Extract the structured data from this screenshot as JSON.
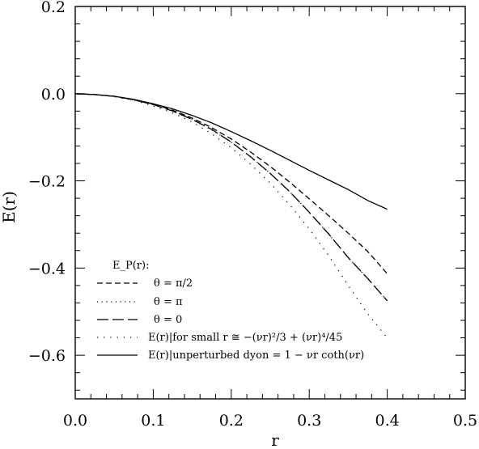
{
  "chart_data": {
    "type": "line",
    "title": "",
    "xlabel": "r",
    "ylabel": "E(r)",
    "xlim": [
      0.0,
      0.5
    ],
    "ylim": [
      -0.7,
      0.2
    ],
    "x_ticks": [
      "0.0",
      "0.1",
      "0.2",
      "0.3",
      "0.4",
      "0.5"
    ],
    "y_ticks": [
      "0.2",
      "0.0",
      "−0.2",
      "−0.4",
      "−0.6"
    ],
    "grid": false,
    "legend_position": "bottom-left",
    "legend_title": "E_P(r):",
    "series": [
      {
        "name": "θ = π/2",
        "style": "dashed",
        "x": [
          0.0,
          0.025,
          0.05,
          0.075,
          0.1,
          0.125,
          0.15,
          0.175,
          0.2,
          0.225,
          0.25,
          0.275,
          0.3,
          0.325,
          0.35,
          0.375,
          0.4
        ],
        "y": [
          0.0,
          -0.002,
          -0.006,
          -0.014,
          -0.024,
          -0.038,
          -0.056,
          -0.078,
          -0.104,
          -0.134,
          -0.167,
          -0.203,
          -0.241,
          -0.28,
          -0.32,
          -0.362,
          -0.413
        ]
      },
      {
        "name": "θ = π",
        "style": "dotted",
        "x": [
          0.0,
          0.025,
          0.05,
          0.075,
          0.1,
          0.125,
          0.15,
          0.175,
          0.2,
          0.225,
          0.25,
          0.275,
          0.3,
          0.325,
          0.35,
          0.375,
          0.4
        ],
        "y": [
          0.0,
          -0.002,
          -0.006,
          -0.014,
          -0.025,
          -0.04,
          -0.059,
          -0.083,
          -0.111,
          -0.145,
          -0.183,
          -0.225,
          -0.272,
          -0.322,
          -0.376,
          -0.424,
          -0.475
        ]
      },
      {
        "name": "θ = 0",
        "style": "long-dashed",
        "x": [
          0.0,
          0.025,
          0.05,
          0.075,
          0.1,
          0.125,
          0.15,
          0.175,
          0.2,
          0.225,
          0.25,
          0.275,
          0.3,
          0.325,
          0.35,
          0.375,
          0.4
        ],
        "y": [
          0.0,
          -0.002,
          -0.006,
          -0.014,
          -0.025,
          -0.04,
          -0.059,
          -0.082,
          -0.111,
          -0.145,
          -0.183,
          -0.225,
          -0.272,
          -0.322,
          -0.376,
          -0.424,
          -0.475
        ]
      },
      {
        "name": "E(r)|for small r ≅ −(νr)²/3 + (νr)⁴/45",
        "style": "sparse-dotted",
        "x": [
          0.0,
          0.025,
          0.05,
          0.075,
          0.1,
          0.125,
          0.15,
          0.175,
          0.2,
          0.225,
          0.25,
          0.275,
          0.3,
          0.325,
          0.35,
          0.375,
          0.4
        ],
        "y": [
          0.0,
          -0.002,
          -0.007,
          -0.015,
          -0.028,
          -0.044,
          -0.065,
          -0.092,
          -0.124,
          -0.162,
          -0.205,
          -0.255,
          -0.31,
          -0.372,
          -0.44,
          -0.505,
          -0.56
        ]
      },
      {
        "name": "E(r)|unperturbed dyon = 1 − νr coth(νr)",
        "style": "solid",
        "x": [
          0.0,
          0.025,
          0.05,
          0.075,
          0.1,
          0.125,
          0.15,
          0.175,
          0.2,
          0.225,
          0.25,
          0.275,
          0.3,
          0.325,
          0.35,
          0.375,
          0.4
        ],
        "y": [
          0.0,
          -0.002,
          -0.006,
          -0.013,
          -0.023,
          -0.035,
          -0.05,
          -0.067,
          -0.087,
          -0.108,
          -0.13,
          -0.153,
          -0.176,
          -0.198,
          -0.22,
          -0.245,
          -0.265
        ]
      }
    ]
  }
}
